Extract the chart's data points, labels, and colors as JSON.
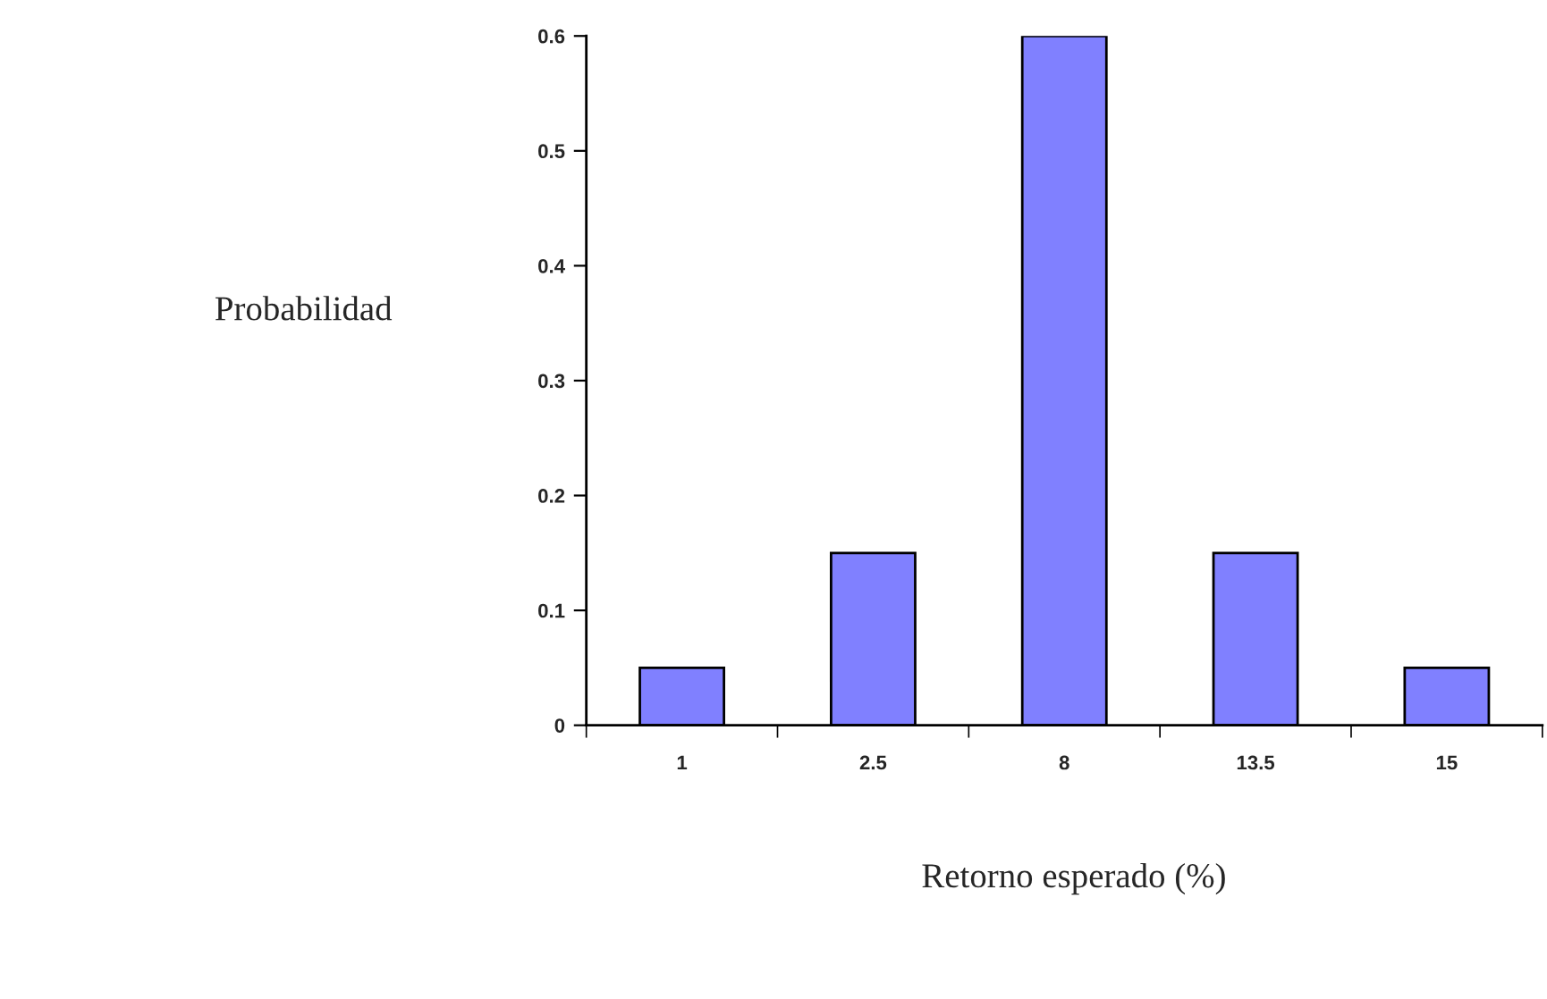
{
  "chart_data": {
    "type": "bar",
    "xlabel": "Retorno esperado (%)",
    "ylabel": "Probabilidad",
    "categories": [
      "1",
      "2.5",
      "8",
      "13.5",
      "15"
    ],
    "values": [
      0.05,
      0.15,
      0.6,
      0.15,
      0.05
    ],
    "color": "#8080ff",
    "ylim": [
      0,
      0.6
    ],
    "yticks": [
      {
        "value": 0,
        "label": "0"
      },
      0.1,
      0.2,
      0.3,
      0.4,
      0.5,
      0.6
    ],
    "grid": false
  }
}
